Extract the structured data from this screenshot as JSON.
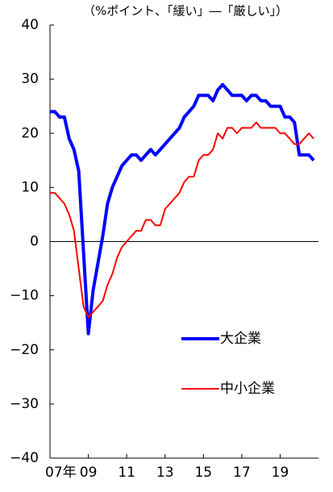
{
  "chart_data": {
    "type": "line",
    "title": "（%ポイント、「緩い」―「厳しい」）",
    "categories": [
      "07年",
      null,
      null,
      null,
      null,
      null,
      null,
      null,
      "09",
      null,
      null,
      null,
      null,
      null,
      null,
      null,
      "11",
      null,
      null,
      null,
      null,
      null,
      null,
      null,
      "13",
      null,
      null,
      null,
      null,
      null,
      null,
      null,
      "15",
      null,
      null,
      null,
      null,
      null,
      null,
      null,
      "17",
      null,
      null,
      null,
      null,
      null,
      null,
      null,
      "19",
      null,
      null,
      null,
      null,
      null,
      null,
      null
    ],
    "series": [
      {
        "name": "大企業",
        "color": "#0000ff",
        "values": [
          24,
          24,
          23,
          23,
          19,
          17,
          13,
          -2,
          -17,
          -9,
          -4,
          1,
          7,
          10,
          12,
          14,
          15,
          16,
          16,
          15,
          16,
          17,
          16,
          17,
          18,
          19,
          20,
          21,
          23,
          24,
          25,
          27,
          27,
          27,
          26,
          28,
          29,
          28,
          27,
          27,
          27,
          26,
          27,
          27,
          26,
          26,
          25,
          25,
          25,
          23,
          23,
          22,
          16,
          16,
          16,
          15
        ]
      },
      {
        "name": "中小企業",
        "color": "#ff0000",
        "values": [
          9,
          9,
          8,
          7,
          5,
          2,
          -5,
          -12,
          -14,
          -13,
          -12,
          -11,
          -8,
          -6,
          -3,
          -1,
          0,
          1,
          2,
          2,
          4,
          4,
          3,
          3,
          6,
          7,
          8,
          9,
          11,
          12,
          12,
          15,
          16,
          16,
          17,
          20,
          19,
          21,
          21,
          20,
          21,
          21,
          21,
          22,
          21,
          21,
          21,
          21,
          20,
          20,
          19,
          18,
          18,
          19,
          20,
          19
        ]
      }
    ],
    "ylim": [
      -40,
      40
    ],
    "yticks": [
      {
        "value": -40,
        "label": "−40"
      },
      {
        "value": -30,
        "label": "−30"
      },
      {
        "value": -20,
        "label": "−20"
      },
      {
        "value": -10,
        "label": "−10"
      },
      0,
      10,
      20,
      30,
      40
    ]
  }
}
